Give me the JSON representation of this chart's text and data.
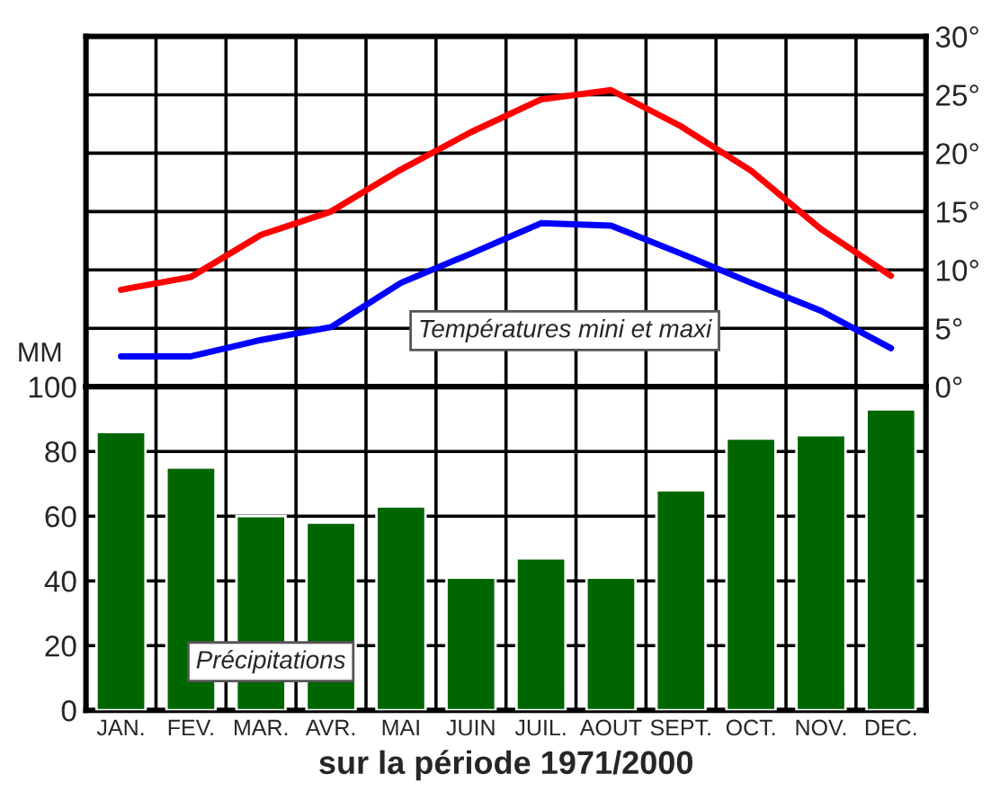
{
  "chart_data": [
    {
      "type": "line",
      "categories": [
        null,
        null,
        null,
        null,
        null,
        null,
        null,
        null,
        null,
        null,
        null,
        null
      ],
      "series": [
        {
          "color": "#ff0000",
          "values": [
            8.3,
            9.4,
            13,
            15,
            18.6,
            21.8,
            24.6,
            25.4,
            22.3,
            18.5,
            13.5,
            9.5
          ]
        },
        {
          "color": "#0000ff",
          "values": [
            2.6,
            2.6,
            4,
            5.1,
            8.9,
            11.4,
            14,
            13.8,
            11.4,
            8.9,
            6.5,
            3.3
          ]
        }
      ],
      "ylim": [
        0,
        30
      ],
      "yticks": [
        {
          "value": 0,
          "label": "0°"
        },
        {
          "value": 5,
          "label": "5°"
        },
        {
          "value": 10,
          "label": "10°"
        },
        {
          "value": 15,
          "label": "15°"
        },
        {
          "value": 20,
          "label": "20°"
        },
        {
          "value": 25,
          "label": "25°"
        },
        {
          "value": 30,
          "label": "30°"
        }
      ],
      "grid": true,
      "tick_labels": "y",
      "line_style": "solid",
      "marker": "none",
      "annotations": [
        "Températures mini et maxi"
      ]
    },
    {
      "type": "bar",
      "categories": [
        "JAN.",
        "FEV.",
        "MAR.",
        "AVR.",
        "MAI",
        "JUIN",
        "JUIL.",
        "AOUT",
        "SEPT.",
        "OCT.",
        "NOV.",
        "DEC."
      ],
      "values": [
        86,
        75,
        60,
        58,
        63,
        41,
        47,
        41,
        68,
        84,
        85,
        93
      ],
      "color": "#006600",
      "ylim": [
        0,
        100
      ],
      "yticks": [
        0,
        20,
        40,
        60,
        80,
        100
      ],
      "ylabel": "MM",
      "xlabel": "sur la période 1971/2000",
      "grid": true,
      "annotations": [
        "Précipitations"
      ]
    }
  ]
}
